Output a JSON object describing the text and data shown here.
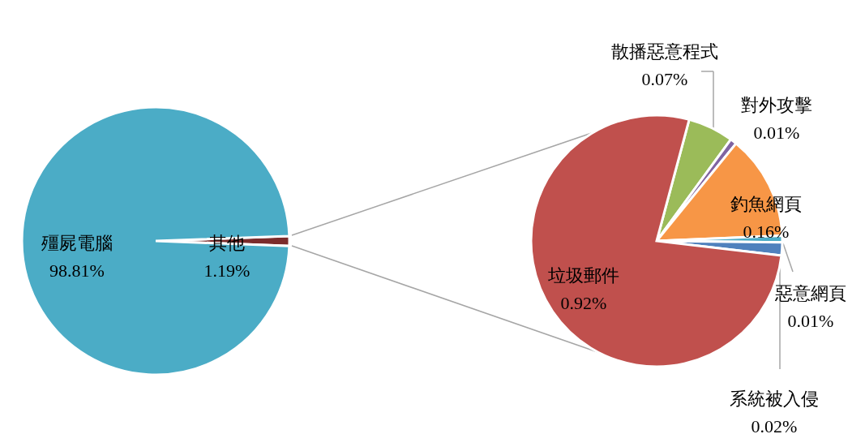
{
  "chart_data": [
    {
      "type": "pie",
      "categories": [
        "其他",
        "殭屍電腦"
      ],
      "values": [
        1.19,
        98.81
      ],
      "colors": [
        "#7b2c2c",
        "#4bacc6"
      ],
      "value_labels": [
        "1.19%",
        "98.81%"
      ]
    },
    {
      "type": "pie",
      "categories": [
        "散播惡意程式",
        "對外攻擊",
        "釣魚網頁",
        "惡意網頁",
        "系統被入侵",
        "垃圾郵件"
      ],
      "values": [
        0.07,
        0.01,
        0.16,
        0.01,
        0.02,
        0.92
      ],
      "colors": [
        "#9bbb59",
        "#8064a2",
        "#f79646",
        "#4bacc6",
        "#4f81bd",
        "#c0504d"
      ],
      "value_labels": [
        "0.07%",
        "0.01%",
        "0.16%",
        "0.01%",
        "0.02%",
        "0.92%"
      ]
    }
  ]
}
